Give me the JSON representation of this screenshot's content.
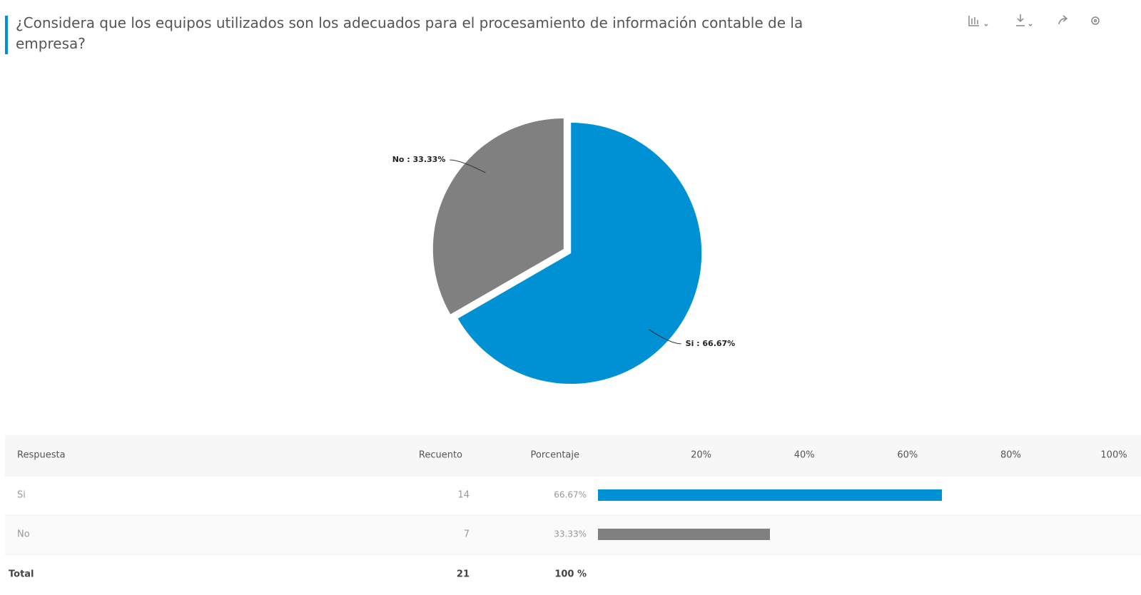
{
  "title": "¿Considera que los equipos utilizados son los adecuados para el procesamiento de información contable de la empresa?",
  "chart_data": [
    {
      "type": "pie",
      "categories": [
        "Si",
        "No"
      ],
      "values": [
        66.67,
        33.33
      ],
      "value_labels": [
        "Si : 66.67%",
        "No : 33.33%"
      ],
      "colors": [
        "#0090d4",
        "#808080"
      ]
    },
    {
      "type": "bar",
      "orientation": "horizontal",
      "categories": [
        "Si",
        "No"
      ],
      "values": [
        66.67,
        33.33
      ],
      "value_labels": [
        "66.67%",
        "33.33%"
      ],
      "colors": [
        "#0090d4",
        "#808080"
      ],
      "xlim": [
        0,
        100
      ],
      "xticks": [
        {
          "value": 20,
          "label": "20%"
        },
        {
          "value": 40,
          "label": "40%"
        },
        {
          "value": 60,
          "label": "60%"
        },
        {
          "value": 80,
          "label": "80%"
        },
        {
          "value": 100,
          "label": "100%"
        }
      ]
    }
  ],
  "table": {
    "headers": [
      "Respuesta",
      "Recuento",
      "Porcentaje"
    ],
    "counts": [
      14,
      7
    ],
    "total": {
      "label": "Total",
      "count": 21,
      "percent": "100 %"
    }
  }
}
